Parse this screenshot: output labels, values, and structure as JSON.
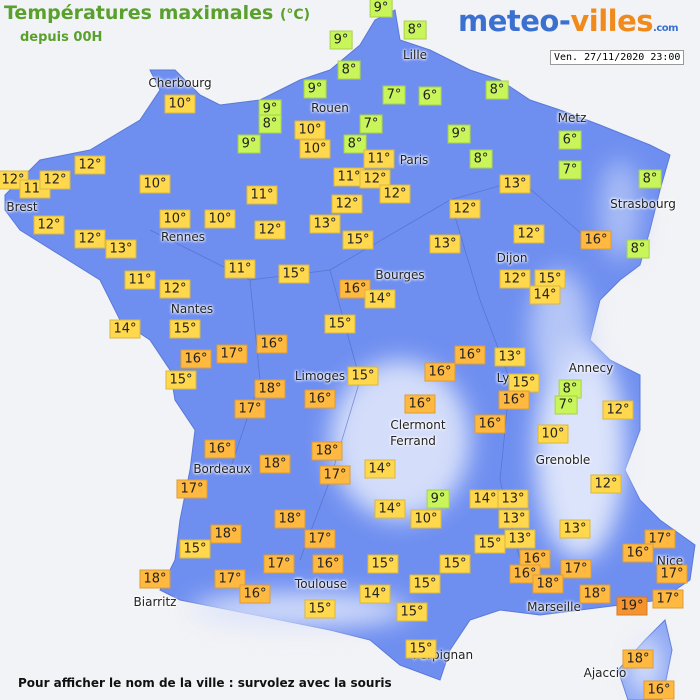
{
  "header": {
    "title": "Températures maximales",
    "unit": "(°C)",
    "subtitle": "depuis 00H",
    "logo": {
      "part1": "meteo-",
      "part2": "villes",
      "suffix": ".com"
    },
    "date": "Ven. 27/11/2020 23:00"
  },
  "footer": "Pour afficher le nom de la ville : survolez avec la souris",
  "cities": [
    "Cherbourg",
    "Lille",
    "Rouen",
    "Paris",
    "Metz",
    "Brest",
    "Strasbourg",
    "Rennes",
    "Dijon",
    "Bourges",
    "Nantes",
    "Annecy",
    "Limoges",
    "Ly",
    "Clermont",
    "Ferrand",
    "Grenoble",
    "Bordeaux",
    "Toulouse",
    "Nice",
    "Marseille",
    "Biarritz",
    "Perpignan",
    "Ajaccio"
  ],
  "stations": [
    {
      "value": 9,
      "label": "9°"
    },
    {
      "value": 8,
      "label": "8°"
    },
    {
      "value": 9,
      "label": "9°"
    },
    {
      "value": 8,
      "label": "8°"
    },
    {
      "value": 7,
      "label": "7°"
    },
    {
      "value": 6,
      "label": "6°"
    },
    {
      "value": 8,
      "label": "8°"
    },
    {
      "value": 9,
      "label": "9°"
    },
    {
      "value": 9,
      "label": "9°"
    },
    {
      "value": 8,
      "label": "8°"
    },
    {
      "value": 7,
      "label": "7°"
    },
    {
      "value": 10,
      "label": "10°"
    },
    {
      "value": 9,
      "label": "9°"
    },
    {
      "value": 8,
      "label": "8°"
    },
    {
      "value": 9,
      "label": "9°"
    },
    {
      "value": 10,
      "label": "10°"
    },
    {
      "value": 8,
      "label": "8°"
    },
    {
      "value": 6,
      "label": "6°"
    },
    {
      "value": 7,
      "label": "7°"
    },
    {
      "value": 10,
      "label": "10°"
    },
    {
      "value": 12,
      "label": "12°"
    },
    {
      "value": 12,
      "label": "12°"
    },
    {
      "value": 11,
      "label": "11°"
    },
    {
      "value": 12,
      "label": "12°"
    },
    {
      "value": 10,
      "label": "10°"
    },
    {
      "value": 11,
      "label": "11°"
    },
    {
      "value": 11,
      "label": "11°"
    },
    {
      "value": 12,
      "label": "12°"
    },
    {
      "value": 12,
      "label": "12°"
    },
    {
      "value": 13,
      "label": "13°"
    },
    {
      "value": 8,
      "label": "8°"
    },
    {
      "value": 11,
      "label": "11°"
    },
    {
      "value": 12,
      "label": "12°"
    },
    {
      "value": 12,
      "label": "12°"
    },
    {
      "value": 10,
      "label": "10°"
    },
    {
      "value": 10,
      "label": "10°"
    },
    {
      "value": 12,
      "label": "12°"
    },
    {
      "value": 13,
      "label": "13°"
    },
    {
      "value": 12,
      "label": "12°"
    },
    {
      "value": 12,
      "label": "12°"
    },
    {
      "value": 13,
      "label": "13°"
    },
    {
      "value": 15,
      "label": "15°"
    },
    {
      "value": 13,
      "label": "13°"
    },
    {
      "value": 12,
      "label": "12°"
    },
    {
      "value": 16,
      "label": "16°"
    },
    {
      "value": 8,
      "label": "8°"
    },
    {
      "value": 11,
      "label": "11°"
    },
    {
      "value": 12,
      "label": "12°"
    },
    {
      "value": 11,
      "label": "11°"
    },
    {
      "value": 15,
      "label": "15°"
    },
    {
      "value": 16,
      "label": "16°"
    },
    {
      "value": 14,
      "label": "14°"
    },
    {
      "value": 12,
      "label": "12°"
    },
    {
      "value": 15,
      "label": "15°"
    },
    {
      "value": 14,
      "label": "14°"
    },
    {
      "value": 14,
      "label": "14°"
    },
    {
      "value": 15,
      "label": "15°"
    },
    {
      "value": 15,
      "label": "15°"
    },
    {
      "value": 17,
      "label": "17°"
    },
    {
      "value": 16,
      "label": "16°"
    },
    {
      "value": 16,
      "label": "16°"
    },
    {
      "value": 15,
      "label": "15°"
    },
    {
      "value": 16,
      "label": "16°"
    },
    {
      "value": 13,
      "label": "13°"
    },
    {
      "value": 16,
      "label": "16°"
    },
    {
      "value": 15,
      "label": "15°"
    },
    {
      "value": 15,
      "label": "15°"
    },
    {
      "value": 8,
      "label": "8°"
    },
    {
      "value": 7,
      "label": "7°"
    },
    {
      "value": 16,
      "label": "16°"
    },
    {
      "value": 18,
      "label": "18°"
    },
    {
      "value": 17,
      "label": "17°"
    },
    {
      "value": 16,
      "label": "16°"
    },
    {
      "value": 16,
      "label": "16°"
    },
    {
      "value": 12,
      "label": "12°"
    },
    {
      "value": 16,
      "label": "16°"
    },
    {
      "value": 10,
      "label": "10°"
    },
    {
      "value": 16,
      "label": "16°"
    },
    {
      "value": 18,
      "label": "18°"
    },
    {
      "value": 18,
      "label": "18°"
    },
    {
      "value": 17,
      "label": "17°"
    },
    {
      "value": 14,
      "label": "14°"
    },
    {
      "value": 17,
      "label": "17°"
    },
    {
      "value": 12,
      "label": "12°"
    },
    {
      "value": 9,
      "label": "9°"
    },
    {
      "value": 14,
      "label": "14°"
    },
    {
      "value": 13,
      "label": "13°"
    },
    {
      "value": 14,
      "label": "14°"
    },
    {
      "value": 10,
      "label": "10°"
    },
    {
      "value": 13,
      "label": "13°"
    },
    {
      "value": 18,
      "label": "18°"
    },
    {
      "value": 13,
      "label": "13°"
    },
    {
      "value": 18,
      "label": "18°"
    },
    {
      "value": 17,
      "label": "17°"
    },
    {
      "value": 13,
      "label": "13°"
    },
    {
      "value": 15,
      "label": "15°"
    },
    {
      "value": 17,
      "label": "17°"
    },
    {
      "value": 16,
      "label": "16°"
    },
    {
      "value": 15,
      "label": "15°"
    },
    {
      "value": 17,
      "label": "17°"
    },
    {
      "value": 16,
      "label": "16°"
    },
    {
      "value": 15,
      "label": "15°"
    },
    {
      "value": 15,
      "label": "15°"
    },
    {
      "value": 16,
      "label": "16°"
    },
    {
      "value": 16,
      "label": "16°"
    },
    {
      "value": 17,
      "label": "17°"
    },
    {
      "value": 17,
      "label": "17°"
    },
    {
      "value": 18,
      "label": "18°"
    },
    {
      "value": 17,
      "label": "17°"
    },
    {
      "value": 16,
      "label": "16°"
    },
    {
      "value": 15,
      "label": "15°"
    },
    {
      "value": 18,
      "label": "18°"
    },
    {
      "value": 18,
      "label": "18°"
    },
    {
      "value": 14,
      "label": "14°"
    },
    {
      "value": 19,
      "label": "19°"
    },
    {
      "value": 17,
      "label": "17°"
    },
    {
      "value": 15,
      "label": "15°"
    },
    {
      "value": 15,
      "label": "15°"
    },
    {
      "value": 15,
      "label": "15°"
    },
    {
      "value": 18,
      "label": "18°"
    },
    {
      "value": 16,
      "label": "16°"
    }
  ]
}
